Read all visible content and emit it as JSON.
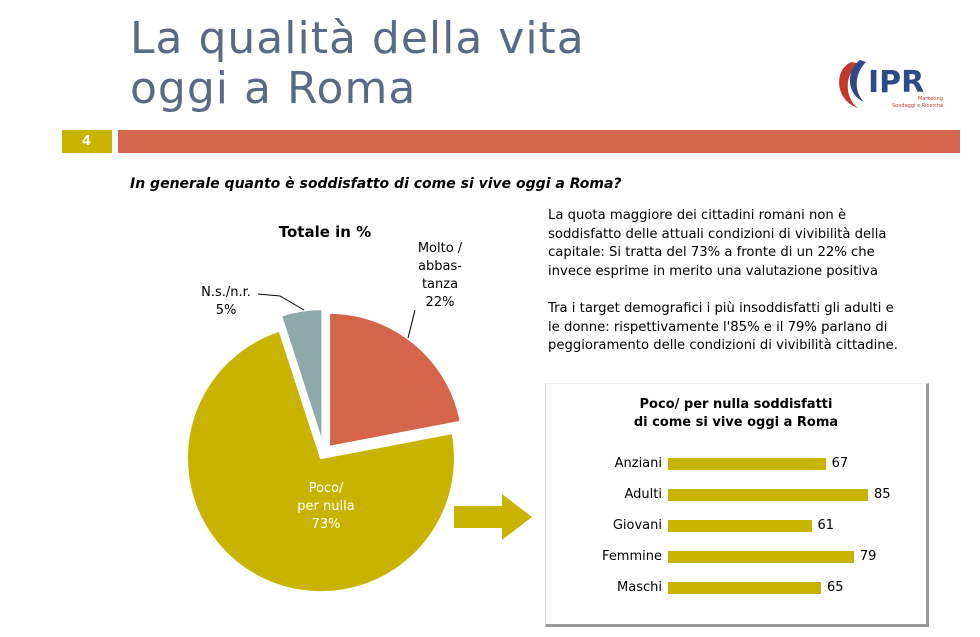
{
  "title": {
    "line1": "La qualità della vita",
    "line2": "oggi a Roma"
  },
  "slide_number": "4",
  "logo": {
    "brand": "IPR",
    "tagline1": "Marketing",
    "tagline2": "Sondaggi e Ricerche"
  },
  "question": "In generale quanto è soddisfatto di come si vive oggi a Roma?",
  "paragraphs": {
    "p1": [
      "La quota maggiore dei cittadini romani non è",
      "soddisfatto delle attuali condizioni di vivibilità della",
      "capitale: Si tratta del 73% a fronte di un 22%  che",
      "invece esprime in merito una valutazione positiva"
    ],
    "p2": [
      "Tra i target demografici i più insoddisfatti gli adulti e",
      "le donne: rispettivamente l'85% e il 79% parlano di",
      "peggioramento delle condizioni di vivibilità cittadine."
    ]
  },
  "colors": {
    "olive": "#c8b400",
    "coral": "#d4654a",
    "grey": "#8fa9a8",
    "title": "#5a6a86"
  },
  "chart_data": [
    {
      "type": "pie",
      "title": "Totale in %",
      "slices": [
        {
          "label_lines": [
            "Molto /",
            "abbas-",
            "tanza"
          ],
          "value": 22,
          "value_label": "22%",
          "color": "#d4654a"
        },
        {
          "label_lines": [
            "Poco/",
            "per nulla"
          ],
          "value": 73,
          "value_label": "73%",
          "color": "#c8b400"
        },
        {
          "label_lines": [
            "N.s./n.r."
          ],
          "value": 5,
          "value_label": "5%",
          "color": "#8fa9a8"
        }
      ]
    },
    {
      "type": "bar",
      "orientation": "horizontal",
      "title_lines": [
        "Poco/ per nulla soddisfatti",
        "di come si vive oggi a Roma"
      ],
      "categories": [
        "Anziani",
        "Adulti",
        "Giovani",
        "Femmine",
        "Maschi"
      ],
      "values": [
        67,
        85,
        61,
        79,
        65
      ],
      "color": "#c8b400"
    }
  ]
}
